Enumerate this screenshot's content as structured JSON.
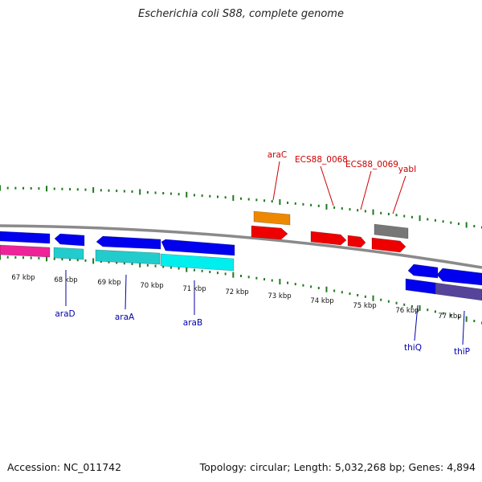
{
  "title": "Escherichia coli S88, complete genome",
  "footer": {
    "accession": "Accession: NC_011742",
    "summary": "Topology: circular; Length: 5,032,268 bp; Genes: 4,894"
  },
  "colors": {
    "backbone": "#8a8a8a",
    "tick": "#1e7a1e",
    "gene_label_top": "#cc0000",
    "gene_label_bottom": "#0000aa",
    "kbp_label": "#111111",
    "blue": "#0000ee",
    "red": "#ee0000",
    "cyan": "#22cccc",
    "bright_cyan": "#00eeee",
    "orange": "#ee8800",
    "gray": "#777777",
    "pink": "#ee2299",
    "slate": "#554499"
  },
  "kbp_labels": [
    "67 kbp",
    "68 kbp",
    "69 kbp",
    "70 kbp",
    "71 kbp",
    "72 kbp",
    "73 kbp",
    "74 kbp",
    "75 kbp",
    "76 kbp",
    "77 kbp"
  ],
  "gene_labels_top": [
    "araC",
    "ECS88_0068",
    "ECS88_0069",
    "yabI"
  ],
  "gene_labels_bottom": [
    "araD",
    "araA",
    "araB",
    "thiQ",
    "thiP"
  ]
}
